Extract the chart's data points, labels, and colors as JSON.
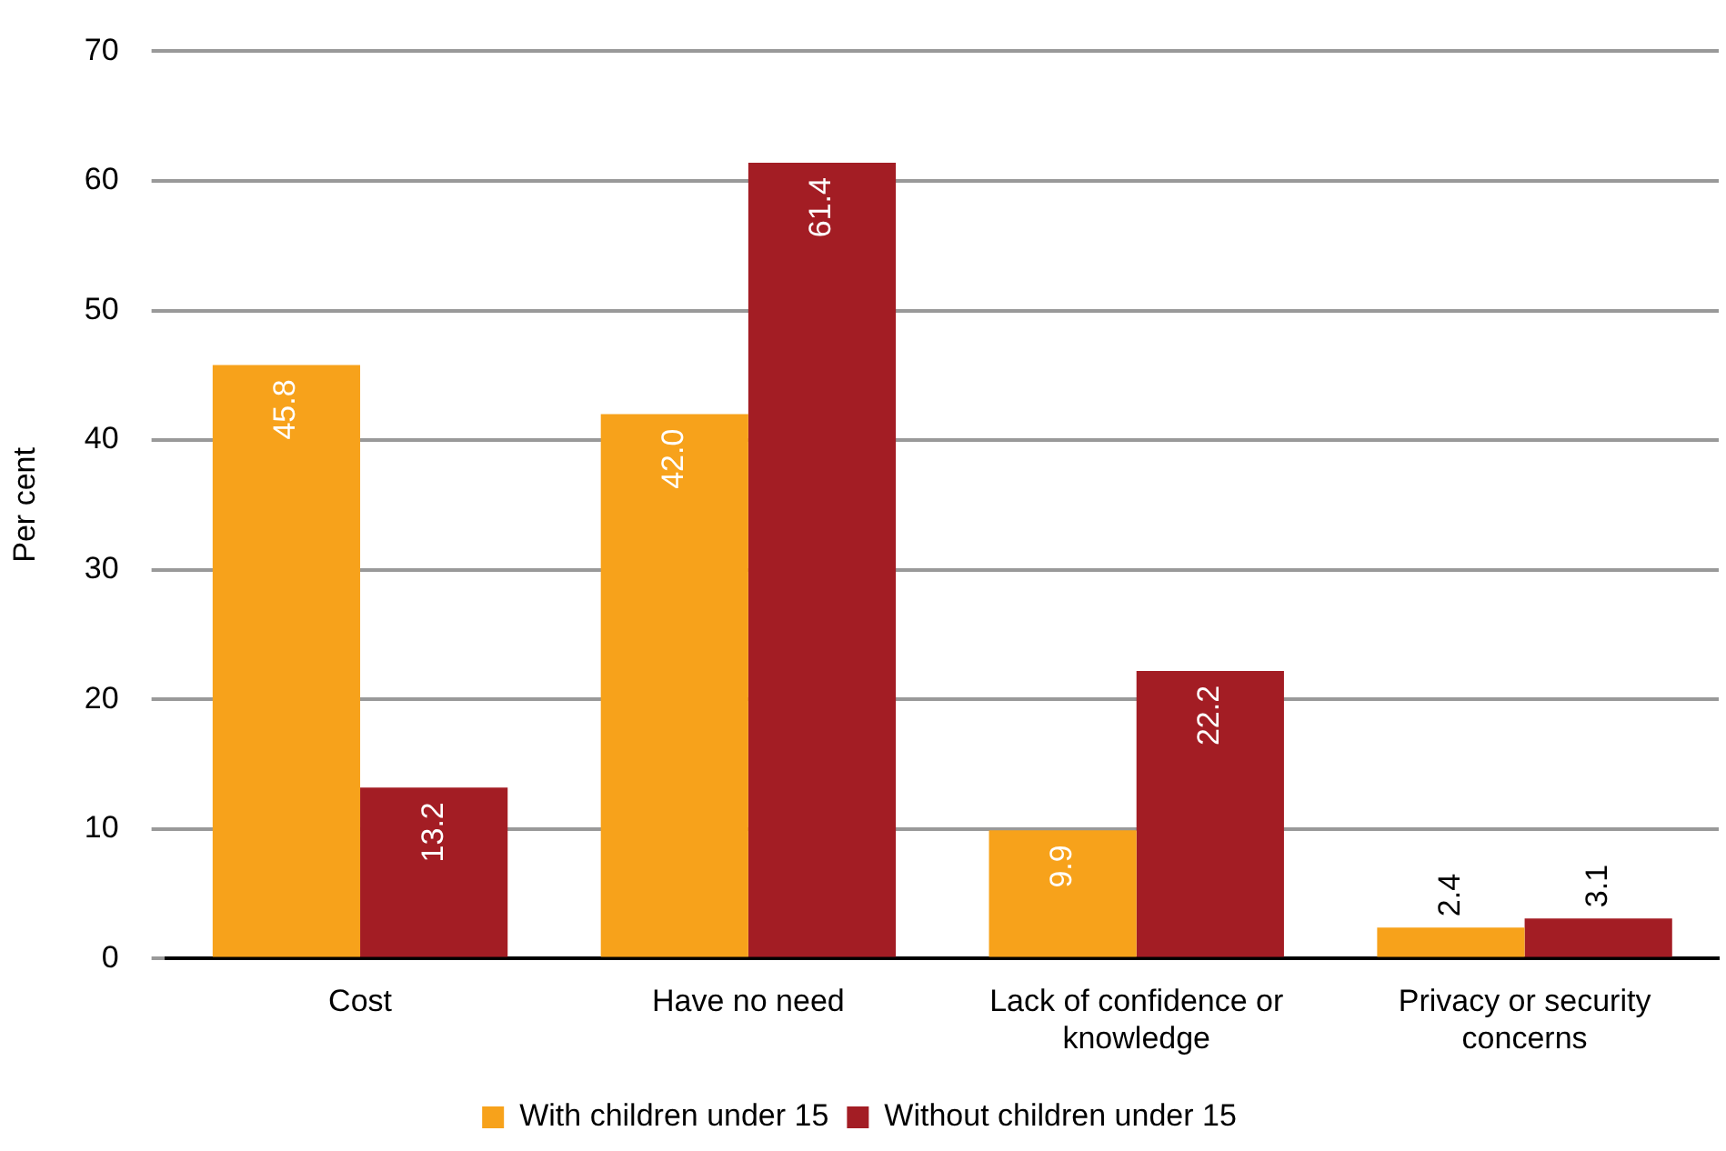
{
  "chart_data": {
    "type": "bar",
    "ylabel": "Per cent",
    "categories": [
      "Cost",
      "Have no need",
      "Lack of confidence or knowledge",
      "Privacy or security concerns"
    ],
    "series": [
      {
        "name": "With children under 15",
        "color": "#f7a21b",
        "values": [
          45.8,
          42.0,
          9.9,
          2.4
        ],
        "value_labels": [
          "45.8",
          "42.0",
          "9.9",
          "2.4"
        ]
      },
      {
        "name": "Without children under 15",
        "color": "#a31d24",
        "values": [
          13.2,
          61.4,
          22.2,
          3.1
        ],
        "value_labels": [
          "13.2",
          "61.4",
          "22.2",
          "3.1"
        ]
      }
    ],
    "ylim": [
      0,
      70
    ],
    "yticks": [
      0,
      10,
      20,
      30,
      40,
      50,
      60,
      70
    ],
    "grid": "y",
    "legend": "bottom"
  }
}
